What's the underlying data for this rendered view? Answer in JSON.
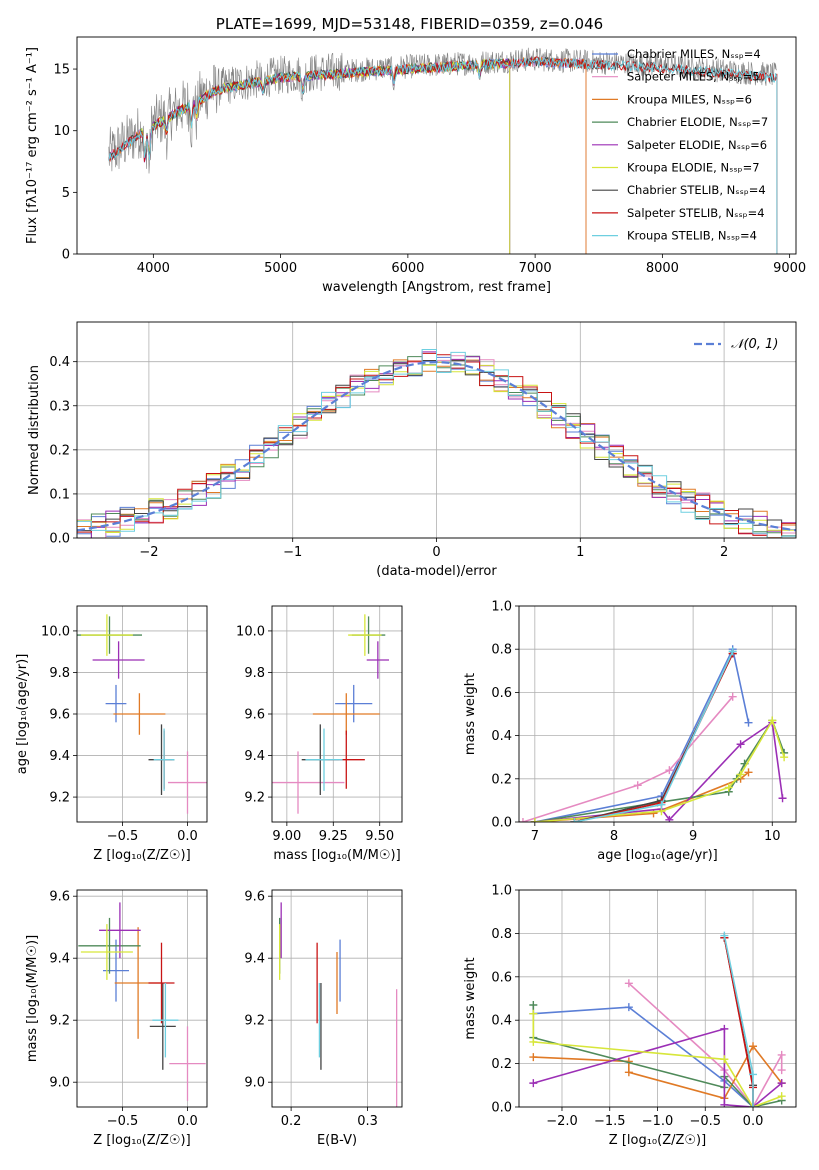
{
  "chart_data": [
    {
      "type": "line",
      "title": "PLATE=1699, MJD=53148, FIBERID=0359, z=0.046",
      "xlabel": "wavelength [Angstrom, rest frame]",
      "ylabel": "Flux [fλ10⁻¹⁷ erg cm⁻² s⁻¹ A⁻¹]",
      "xlim": [
        3400,
        9050
      ],
      "ylim": [
        0,
        17.6
      ],
      "xticks": [
        4000,
        5000,
        6000,
        7000,
        8000,
        9000
      ],
      "yticks": [
        0,
        5,
        10,
        15
      ],
      "legend_position": "top-right",
      "series": [
        {
          "name": "Chabrier MILES, N_SSP=4",
          "color": "#5b7fd6",
          "range": [
            3650,
            7400
          ]
        },
        {
          "name": "Salpeter MILES, N_SSP=5",
          "color": "#e58ac1",
          "range": [
            3650,
            7400
          ]
        },
        {
          "name": "Kroupa MILES, N_SSP=6",
          "color": "#e07a26",
          "range": [
            3650,
            7400
          ]
        },
        {
          "name": "Chabrier ELODIE, N_SSP=7",
          "color": "#4f8a5a",
          "range": [
            3900,
            6800
          ]
        },
        {
          "name": "Salpeter ELODIE, N_SSP=6",
          "color": "#9b2fb5",
          "range": [
            3900,
            6800
          ]
        },
        {
          "name": "Kroupa ELODIE, N_SSP=7",
          "color": "#d7e63a",
          "range": [
            3900,
            6800
          ]
        },
        {
          "name": "Chabrier STELIB, N_SSP=4",
          "color": "#444444",
          "range": [
            3650,
            8900
          ]
        },
        {
          "name": "Salpeter STELIB, N_SSP=4",
          "color": "#c81414",
          "range": [
            3650,
            8900
          ]
        },
        {
          "name": "Kroupa STELIB, N_SSP=4",
          "color": "#6ecfe0",
          "range": [
            3650,
            8900
          ]
        }
      ],
      "data_spectrum": {
        "color": "#808080",
        "range": [
          3650,
          8900
        ],
        "approx_level": [
          [
            3650,
            8
          ],
          [
            3900,
            10
          ],
          [
            4500,
            13.5
          ],
          [
            5000,
            14.5
          ],
          [
            6000,
            15.2
          ],
          [
            7000,
            15.8
          ],
          [
            8000,
            15.3
          ],
          [
            8900,
            14.5
          ]
        ]
      }
    },
    {
      "type": "line",
      "xlabel": "(data-model)/error",
      "ylabel": "Normed distribution",
      "xlim": [
        -2.5,
        2.5
      ],
      "ylim": [
        0,
        0.49
      ],
      "xticks": [
        -2,
        -1,
        0,
        1,
        2
      ],
      "yticks": [
        0.0,
        0.1,
        0.2,
        0.3,
        0.4
      ],
      "legend": "𝒩(0, 1)",
      "legend_position": "top-right",
      "curve": {
        "name": "𝒩(0, 1)",
        "mean": 0,
        "sigma": 1,
        "color": "#5b7fd6",
        "style": "dashed"
      },
      "histogram_bin_width": 0.1
    },
    {
      "type": "scatter",
      "xlabel": "Z [log₁₀(Z/Z☉)]",
      "ylabel": "age  [log₁₀(age/yr)]",
      "xlim": [
        -0.85,
        0.15
      ],
      "ylim": [
        9.08,
        10.12
      ],
      "xticks": [
        -0.5,
        0.0
      ],
      "yticks": [
        9.2,
        9.4,
        9.6,
        9.8,
        10.0
      ],
      "points": [
        {
          "color": "#5b7fd6",
          "x": -0.55,
          "y": 9.65,
          "xerr": 0.08,
          "yerr": 0.09
        },
        {
          "color": "#e58ac1",
          "x": 0.0,
          "y": 9.27,
          "xerr": 0.15,
          "yerr": 0.15
        },
        {
          "color": "#e07a26",
          "x": -0.37,
          "y": 9.6,
          "xerr": 0.2,
          "yerr": 0.1
        },
        {
          "color": "#4f8a5a",
          "x": -0.6,
          "y": 9.98,
          "xerr": 0.25,
          "yerr": 0.09
        },
        {
          "color": "#9b2fb5",
          "x": -0.53,
          "y": 9.86,
          "xerr": 0.2,
          "yerr": 0.09
        },
        {
          "color": "#d7e63a",
          "x": -0.62,
          "y": 9.98,
          "xerr": 0.2,
          "yerr": 0.1
        },
        {
          "color": "#444444",
          "x": -0.2,
          "y": 9.38,
          "xerr": 0.1,
          "yerr": 0.17
        },
        {
          "color": "#c81414",
          "x": -0.18,
          "y": 9.38,
          "xerr": 0.06,
          "yerr": 0.14
        },
        {
          "color": "#6ecfe0",
          "x": -0.18,
          "y": 9.38,
          "xerr": 0.08,
          "yerr": 0.15
        }
      ]
    },
    {
      "type": "scatter",
      "xlabel": "mass [log₁₀(M/M☉)]",
      "ylabel": "",
      "xlim": [
        8.92,
        9.62
      ],
      "ylim": [
        9.08,
        10.12
      ],
      "xticks": [
        9.0,
        9.25,
        9.5
      ],
      "yticks": [
        9.2,
        9.4,
        9.6,
        9.8,
        10.0
      ],
      "points": [
        {
          "color": "#5b7fd6",
          "x": 9.36,
          "y": 9.65,
          "xerr": 0.1,
          "yerr": 0.09
        },
        {
          "color": "#e58ac1",
          "x": 9.06,
          "y": 9.27,
          "xerr": 0.25,
          "yerr": 0.15
        },
        {
          "color": "#e07a26",
          "x": 9.32,
          "y": 9.6,
          "xerr": 0.18,
          "yerr": 0.1
        },
        {
          "color": "#4f8a5a",
          "x": 9.44,
          "y": 9.98,
          "xerr": 0.09,
          "yerr": 0.09
        },
        {
          "color": "#9b2fb5",
          "x": 9.49,
          "y": 9.86,
          "xerr": 0.06,
          "yerr": 0.09
        },
        {
          "color": "#d7e63a",
          "x": 9.42,
          "y": 9.98,
          "xerr": 0.09,
          "yerr": 0.1
        },
        {
          "color": "#444444",
          "x": 9.18,
          "y": 9.38,
          "xerr": 0.1,
          "yerr": 0.17
        },
        {
          "color": "#c81414",
          "x": 9.32,
          "y": 9.38,
          "xerr": 0.1,
          "yerr": 0.14
        },
        {
          "color": "#6ecfe0",
          "x": 9.2,
          "y": 9.38,
          "xerr": 0.1,
          "yerr": 0.15
        }
      ]
    },
    {
      "type": "line",
      "xlabel": "age  [log₁₀(age/yr)]",
      "ylabel": "mass weight",
      "xlim": [
        6.8,
        10.3
      ],
      "ylim": [
        0,
        1.0
      ],
      "xticks": [
        7,
        8,
        9,
        10
      ],
      "yticks": [
        0.0,
        0.2,
        0.4,
        0.6,
        0.8,
        1.0
      ],
      "series": [
        {
          "color": "#5b7fd6",
          "x": [
            7.0,
            8.6,
            9.5,
            9.7
          ],
          "y": [
            0.0,
            0.12,
            0.8,
            0.46
          ]
        },
        {
          "color": "#e58ac1",
          "x": [
            6.85,
            8.3,
            8.7,
            9.5
          ],
          "y": [
            0.0,
            0.17,
            0.24,
            0.58
          ]
        },
        {
          "color": "#e07a26",
          "x": [
            7.0,
            8.5,
            9.6,
            9.7
          ],
          "y": [
            0.0,
            0.04,
            0.2,
            0.23
          ]
        },
        {
          "color": "#4f8a5a",
          "x": [
            7.0,
            8.55,
            9.45,
            9.55,
            9.65,
            10.0,
            10.15
          ],
          "y": [
            0.0,
            0.09,
            0.14,
            0.2,
            0.27,
            0.47,
            0.32
          ]
        },
        {
          "color": "#9b2fb5",
          "x": [
            7.0,
            8.6,
            8.7,
            9.6,
            10.0,
            10.13
          ],
          "y": [
            0.0,
            0.06,
            0.01,
            0.36,
            0.46,
            0.11
          ]
        },
        {
          "color": "#d7e63a",
          "x": [
            7.0,
            8.6,
            9.45,
            9.6,
            10.0,
            10.15
          ],
          "y": [
            0.0,
            0.05,
            0.16,
            0.22,
            0.47,
            0.3
          ]
        },
        {
          "color": "#444444",
          "x": [
            7.5,
            8.6,
            9.5
          ],
          "y": [
            0.0,
            0.1,
            0.78
          ]
        },
        {
          "color": "#c81414",
          "x": [
            7.5,
            8.6,
            9.5
          ],
          "y": [
            0.0,
            0.09,
            0.78
          ]
        },
        {
          "color": "#6ecfe0",
          "x": [
            7.5,
            8.6,
            9.5
          ],
          "y": [
            0.0,
            0.08,
            0.79
          ]
        }
      ]
    },
    {
      "type": "scatter",
      "xlabel": "Z [log₁₀(Z/Z☉)]",
      "ylabel": "mass [log₁₀(M/M☉)]",
      "xlim": [
        -0.85,
        0.15
      ],
      "ylim": [
        8.92,
        9.62
      ],
      "xticks": [
        -0.5,
        0.0
      ],
      "yticks": [
        9.0,
        9.2,
        9.4,
        9.6
      ],
      "points": [
        {
          "color": "#5b7fd6",
          "x": -0.55,
          "y": 9.36,
          "xerr": 0.1,
          "yerr": 0.1
        },
        {
          "color": "#e58ac1",
          "x": 0.0,
          "y": 9.06,
          "xerr": 0.14,
          "yerr": 0.12
        },
        {
          "color": "#e07a26",
          "x": -0.38,
          "y": 9.32,
          "xerr": 0.18,
          "yerr": 0.18
        },
        {
          "color": "#4f8a5a",
          "x": -0.6,
          "y": 9.44,
          "xerr": 0.24,
          "yerr": 0.09
        },
        {
          "color": "#9b2fb5",
          "x": -0.52,
          "y": 9.49,
          "xerr": 0.16,
          "yerr": 0.09
        },
        {
          "color": "#d7e63a",
          "x": -0.62,
          "y": 9.42,
          "xerr": 0.2,
          "yerr": 0.09
        },
        {
          "color": "#444444",
          "x": -0.19,
          "y": 9.18,
          "xerr": 0.1,
          "yerr": 0.14
        },
        {
          "color": "#c81414",
          "x": -0.2,
          "y": 9.32,
          "xerr": 0.1,
          "yerr": 0.13
        },
        {
          "color": "#6ecfe0",
          "x": -0.17,
          "y": 9.2,
          "xerr": 0.1,
          "yerr": 0.12
        }
      ]
    },
    {
      "type": "scatter",
      "xlabel": "E(B-V)",
      "ylabel": "",
      "xlim": [
        0.175,
        0.345
      ],
      "ylim": [
        8.92,
        9.62
      ],
      "xticks": [
        0.2,
        0.3
      ],
      "yticks": [
        9.0,
        9.2,
        9.4,
        9.6
      ],
      "points": [
        {
          "color": "#5b7fd6",
          "x": 0.264,
          "y": 9.36,
          "yerr": 0.1
        },
        {
          "color": "#e58ac1",
          "x": 0.338,
          "y": 9.1,
          "yerr": 0.2
        },
        {
          "color": "#e07a26",
          "x": 0.26,
          "y": 9.32,
          "yerr": 0.1
        },
        {
          "color": "#4f8a5a",
          "x": 0.185,
          "y": 9.44,
          "yerr": 0.09
        },
        {
          "color": "#9b2fb5",
          "x": 0.187,
          "y": 9.49,
          "yerr": 0.09
        },
        {
          "color": "#d7e63a",
          "x": 0.185,
          "y": 9.42,
          "yerr": 0.09
        },
        {
          "color": "#444444",
          "x": 0.239,
          "y": 9.18,
          "yerr": 0.14
        },
        {
          "color": "#c81414",
          "x": 0.234,
          "y": 9.32,
          "yerr": 0.13
        },
        {
          "color": "#6ecfe0",
          "x": 0.237,
          "y": 9.2,
          "yerr": 0.12
        }
      ]
    },
    {
      "type": "line",
      "xlabel": "Z [log₁₀(Z/Z☉)]",
      "ylabel": "mass weight",
      "xlim": [
        -2.45,
        0.45
      ],
      "ylim": [
        0,
        1.0
      ],
      "xticks": [
        -2.0,
        -1.5,
        -1.0,
        -0.5,
        0.0
      ],
      "yticks": [
        0.0,
        0.2,
        0.4,
        0.6,
        0.8,
        1.0
      ],
      "series": [
        {
          "color": "#5b7fd6",
          "x": [
            -2.3,
            -1.3,
            -0.3,
            0.0
          ],
          "y": [
            0.43,
            0.46,
            0.12,
            0.0
          ]
        },
        {
          "color": "#e58ac1",
          "x": [
            -1.3,
            -0.3,
            0.0,
            0.3,
            0.3
          ],
          "y": [
            0.57,
            0.17,
            0.0,
            0.24,
            0.17
          ]
        },
        {
          "color": "#e07a26",
          "x": [
            -2.3,
            -1.3,
            -1.3,
            -0.3,
            0.0,
            0.3
          ],
          "y": [
            0.23,
            0.21,
            0.16,
            0.04,
            0.28,
            0.11
          ]
        },
        {
          "color": "#4f8a5a",
          "x": [
            -2.3,
            -2.3,
            -0.3,
            -0.3,
            0.0,
            0.3
          ],
          "y": [
            0.47,
            0.32,
            0.09,
            0.14,
            0.0,
            0.03
          ]
        },
        {
          "color": "#9b2fb5",
          "x": [
            -2.3,
            -0.3,
            -0.3,
            0.0,
            0.3
          ],
          "y": [
            0.11,
            0.36,
            0.01,
            0.0,
            0.11
          ]
        },
        {
          "color": "#d7e63a",
          "x": [
            -2.3,
            -2.3,
            -0.3,
            0.0,
            0.3
          ],
          "y": [
            0.43,
            0.3,
            0.22,
            0.0,
            0.05
          ]
        },
        {
          "color": "#444444",
          "x": [
            -0.3,
            0.0,
            0.0
          ],
          "y": [
            0.78,
            0.1,
            0.0
          ]
        },
        {
          "color": "#c81414",
          "x": [
            -0.3,
            0.0,
            0.0
          ],
          "y": [
            0.78,
            0.09,
            0.0
          ]
        },
        {
          "color": "#6ecfe0",
          "x": [
            -0.3,
            0.0,
            0.0
          ],
          "y": [
            0.79,
            0.15,
            0.0
          ]
        }
      ]
    }
  ]
}
